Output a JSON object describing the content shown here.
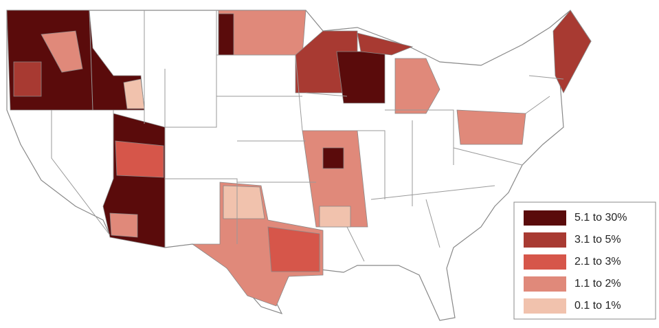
{
  "legend": {
    "items": [
      {
        "label": "5.1 to 30%",
        "color": "#5a0b0b"
      },
      {
        "label": "3.1 to 5%",
        "color": "#a83a32"
      },
      {
        "label": "2.1 to 3%",
        "color": "#d6564a"
      },
      {
        "label": "1.1 to 2%",
        "color": "#e0897a"
      },
      {
        "label": "0.1 to 1%",
        "color": "#f1c2ad"
      }
    ]
  }
}
